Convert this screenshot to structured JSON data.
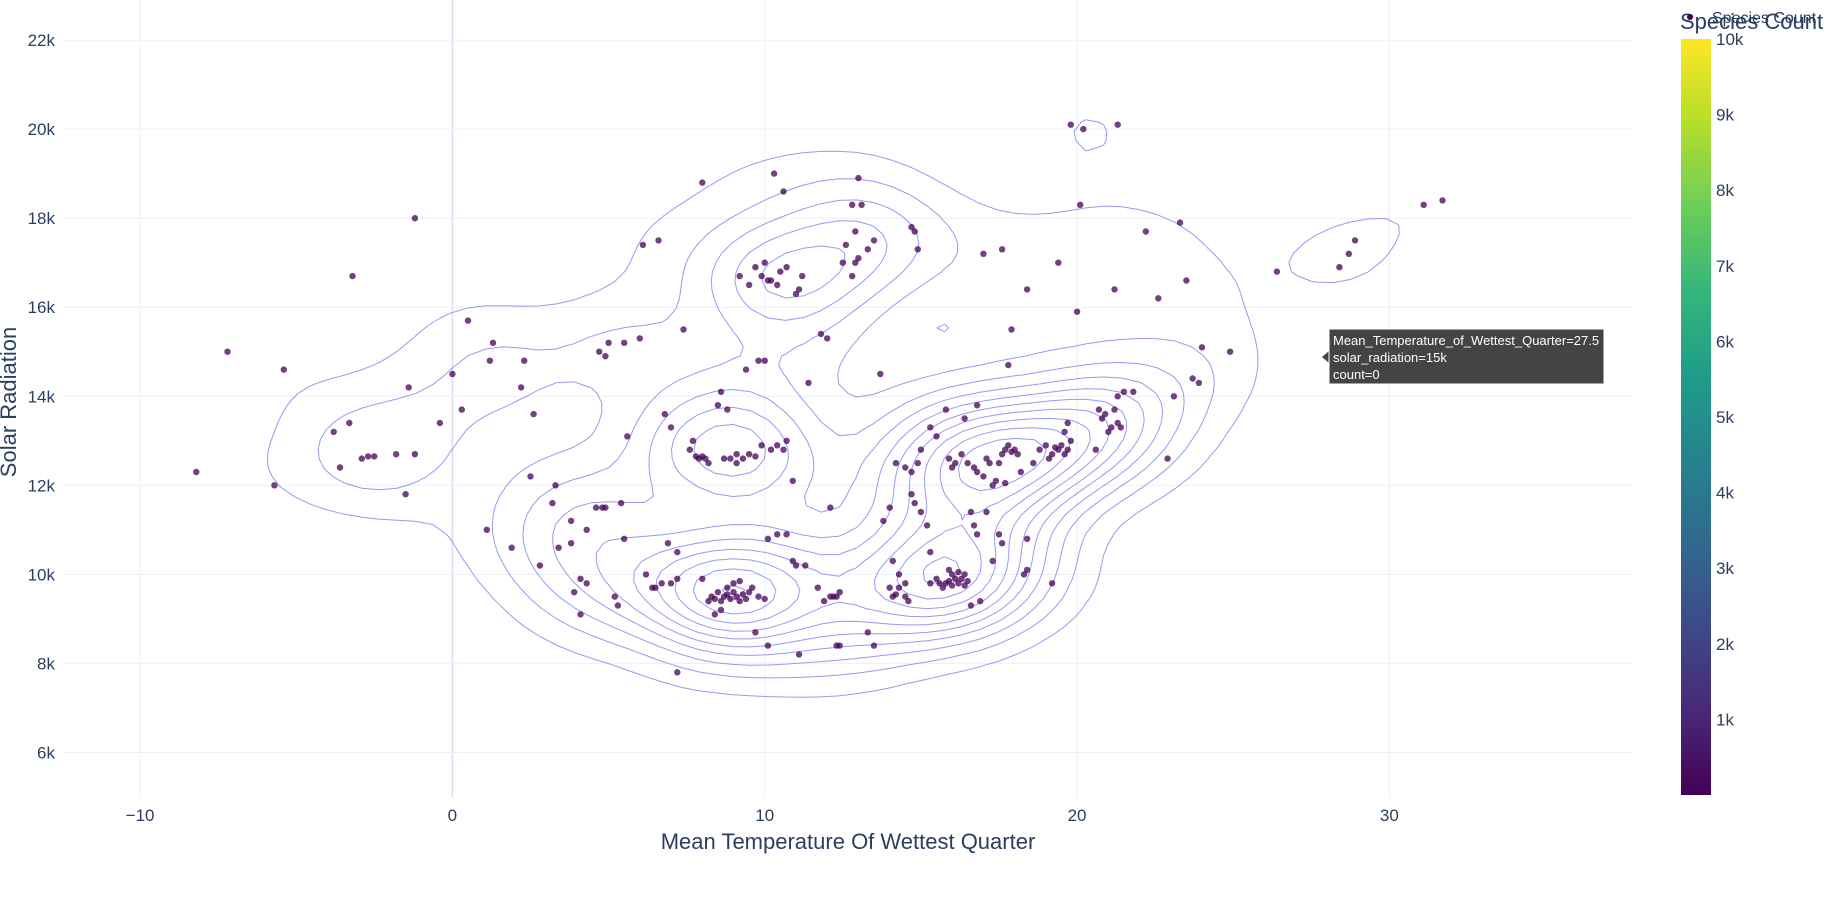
{
  "chart_data": {
    "type": "scatter",
    "xlabel": "Mean Temperature Of Wettest Quarter",
    "ylabel": "Solar Radiation",
    "xlim": [
      -12.5,
      37.8
    ],
    "ylim": [
      5000,
      22900
    ],
    "x_ticks": [
      -10,
      0,
      10,
      20,
      30
    ],
    "x_tick_labels": [
      "−10",
      "0",
      "10",
      "20",
      "30"
    ],
    "y_ticks": [
      6000,
      8000,
      10000,
      12000,
      14000,
      16000,
      18000,
      20000,
      22000
    ],
    "y_tick_labels": [
      "6k",
      "8k",
      "10k",
      "12k",
      "14k",
      "16k",
      "18k",
      "20k",
      "22k"
    ],
    "grid": true,
    "colorbar": {
      "title": "Species Count",
      "legend_label": "Species Count",
      "range": [
        0,
        10000
      ],
      "colorscale": "Viridis",
      "ticks": [
        1000,
        2000,
        3000,
        4000,
        5000,
        6000,
        7000,
        8000,
        9000,
        10000
      ],
      "tick_labels": [
        "1k",
        "2k",
        "3k",
        "4k",
        "5k",
        "6k",
        "7k",
        "8k",
        "9k",
        "10k"
      ]
    },
    "colors": {
      "point": "#440154",
      "contour": "#6d6df0",
      "grid": "#ebf0f8",
      "zeroline": "#d8ddf0"
    },
    "points": [
      [
        -8.2,
        12300
      ],
      [
        -7.2,
        15000
      ],
      [
        -5.7,
        12000
      ],
      [
        -5.4,
        14600
      ],
      [
        -3.8,
        13200
      ],
      [
        -3.6,
        12400
      ],
      [
        -3.2,
        16700
      ],
      [
        -3.3,
        13400
      ],
      [
        -2.9,
        12600
      ],
      [
        -2.7,
        12650
      ],
      [
        -2.5,
        12650
      ],
      [
        -1.4,
        14200
      ],
      [
        -1.5,
        11800
      ],
      [
        -1.2,
        12700
      ],
      [
        -1.2,
        18000
      ],
      [
        -0.4,
        13400
      ],
      [
        0.3,
        13700
      ],
      [
        0.5,
        15700
      ],
      [
        1.1,
        11000
      ],
      [
        1.2,
        14800
      ],
      [
        1.3,
        15200
      ],
      [
        1.9,
        10600
      ],
      [
        2.2,
        14200
      ],
      [
        2.3,
        14800
      ],
      [
        2.5,
        12200
      ],
      [
        2.6,
        13600
      ],
      [
        2.8,
        10200
      ],
      [
        3.2,
        11600
      ],
      [
        3.3,
        12000
      ],
      [
        3.8,
        11200
      ],
      [
        3.8,
        10700
      ],
      [
        3.9,
        9600
      ],
      [
        4.1,
        9900
      ],
      [
        4.1,
        9100
      ],
      [
        4.3,
        9800
      ],
      [
        4.3,
        11000
      ],
      [
        4.6,
        11500
      ],
      [
        4.8,
        11500
      ],
      [
        4.9,
        11500
      ],
      [
        4.7,
        15000
      ],
      [
        4.9,
        14900
      ],
      [
        5.0,
        15200
      ],
      [
        5.2,
        9500
      ],
      [
        5.3,
        9300
      ],
      [
        5.4,
        11600
      ],
      [
        5.5,
        10800
      ],
      [
        5.5,
        15200
      ],
      [
        5.6,
        13100
      ],
      [
        6.0,
        15300
      ],
      [
        6.1,
        17400
      ],
      [
        6.2,
        10000
      ],
      [
        6.4,
        9700
      ],
      [
        6.5,
        9700
      ],
      [
        6.6,
        17500
      ],
      [
        6.8,
        13600
      ],
      [
        6.9,
        10700
      ],
      [
        7.0,
        13300
      ],
      [
        7.2,
        10500
      ],
      [
        7.0,
        9800
      ],
      [
        7.2,
        9900
      ],
      [
        7.4,
        15500
      ],
      [
        7.2,
        7800
      ],
      [
        7.6,
        12800
      ],
      [
        7.7,
        13000
      ],
      [
        7.8,
        12650
      ],
      [
        7.9,
        12600
      ],
      [
        8.0,
        12650
      ],
      [
        8.1,
        12600
      ],
      [
        8.2,
        12500
      ],
      [
        8.0,
        18800
      ],
      [
        8.2,
        9400
      ],
      [
        8.3,
        9500
      ],
      [
        8.4,
        9450
      ],
      [
        8.5,
        9600
      ],
      [
        8.6,
        9400
      ],
      [
        8.7,
        9500
      ],
      [
        8.8,
        9550
      ],
      [
        8.9,
        9450
      ],
      [
        9.0,
        9600
      ],
      [
        9.1,
        9500
      ],
      [
        9.2,
        9400
      ],
      [
        9.3,
        9550
      ],
      [
        9.4,
        9450
      ],
      [
        9.5,
        9600
      ],
      [
        8.4,
        9100
      ],
      [
        8.6,
        9200
      ],
      [
        8.8,
        9700
      ],
      [
        9.0,
        9800
      ],
      [
        9.2,
        9850
      ],
      [
        9.6,
        9700
      ],
      [
        9.8,
        9500
      ],
      [
        10.0,
        9450
      ],
      [
        8.0,
        9900
      ],
      [
        8.5,
        13800
      ],
      [
        8.6,
        14100
      ],
      [
        8.8,
        13700
      ],
      [
        8.7,
        12600
      ],
      [
        8.9,
        12600
      ],
      [
        9.1,
        12700
      ],
      [
        9.3,
        12600
      ],
      [
        9.1,
        12500
      ],
      [
        9.5,
        12700
      ],
      [
        9.7,
        12650
      ],
      [
        9.2,
        16700
      ],
      [
        9.5,
        16500
      ],
      [
        9.7,
        16900
      ],
      [
        9.4,
        14600
      ],
      [
        9.8,
        14800
      ],
      [
        9.9,
        12900
      ],
      [
        10.2,
        12800
      ],
      [
        10.4,
        12900
      ],
      [
        10.6,
        12800
      ],
      [
        10.7,
        13000
      ],
      [
        10.9,
        12100
      ],
      [
        10.0,
        14800
      ],
      [
        10.0,
        17000
      ],
      [
        10.2,
        16600
      ],
      [
        10.4,
        16500
      ],
      [
        10.5,
        16800
      ],
      [
        10.3,
        19000
      ],
      [
        10.6,
        18600
      ],
      [
        10.7,
        16900
      ],
      [
        11.0,
        16300
      ],
      [
        11.1,
        16400
      ],
      [
        10.1,
        16600
      ],
      [
        9.9,
        16700
      ],
      [
        10.1,
        10800
      ],
      [
        10.4,
        10900
      ],
      [
        10.7,
        10900
      ],
      [
        10.9,
        10300
      ],
      [
        11.0,
        10200
      ],
      [
        11.3,
        10200
      ],
      [
        11.4,
        14300
      ],
      [
        11.8,
        15400
      ],
      [
        12.0,
        15300
      ],
      [
        11.7,
        9700
      ],
      [
        11.9,
        9400
      ],
      [
        12.1,
        9500
      ],
      [
        12.2,
        9500
      ],
      [
        12.3,
        9500
      ],
      [
        12.4,
        9600
      ],
      [
        12.3,
        8400
      ],
      [
        12.4,
        8400
      ],
      [
        12.1,
        11500
      ],
      [
        12.5,
        17000
      ],
      [
        12.6,
        17400
      ],
      [
        12.9,
        17700
      ],
      [
        12.8,
        16700
      ],
      [
        12.8,
        18300
      ],
      [
        12.9,
        17000
      ],
      [
        13.0,
        17100
      ],
      [
        13.0,
        18900
      ],
      [
        13.1,
        18300
      ],
      [
        13.3,
        17300
      ],
      [
        13.5,
        17500
      ],
      [
        13.7,
        14500
      ],
      [
        13.8,
        11200
      ],
      [
        14.0,
        11500
      ],
      [
        14.1,
        9500
      ],
      [
        14.0,
        9700
      ],
      [
        14.2,
        9550
      ],
      [
        14.3,
        9700
      ],
      [
        14.3,
        10000
      ],
      [
        14.5,
        9800
      ],
      [
        14.6,
        9400
      ],
      [
        14.5,
        9500
      ],
      [
        14.2,
        12500
      ],
      [
        14.5,
        12400
      ],
      [
        14.7,
        12300
      ],
      [
        14.9,
        12500
      ],
      [
        15.0,
        12800
      ],
      [
        14.7,
        11800
      ],
      [
        14.8,
        11600
      ],
      [
        15.0,
        11400
      ],
      [
        15.2,
        11100
      ],
      [
        15.3,
        10500
      ],
      [
        15.3,
        9800
      ],
      [
        15.5,
        9900
      ],
      [
        15.6,
        9800
      ],
      [
        15.7,
        9700
      ],
      [
        15.8,
        9800
      ],
      [
        15.9,
        9850
      ],
      [
        16.0,
        9750
      ],
      [
        16.1,
        9900
      ],
      [
        16.2,
        9800
      ],
      [
        16.3,
        9900
      ],
      [
        16.4,
        9750
      ],
      [
        16.5,
        9850
      ],
      [
        15.9,
        10100
      ],
      [
        16.0,
        10000
      ],
      [
        16.2,
        10050
      ],
      [
        16.4,
        10000
      ],
      [
        14.8,
        17700
      ],
      [
        14.9,
        17300
      ],
      [
        14.7,
        17800
      ],
      [
        15.3,
        13300
      ],
      [
        15.5,
        13100
      ],
      [
        15.8,
        13700
      ],
      [
        15.9,
        12600
      ],
      [
        16.0,
        12400
      ],
      [
        16.1,
        12500
      ],
      [
        16.3,
        12700
      ],
      [
        16.5,
        12500
      ],
      [
        16.7,
        12400
      ],
      [
        16.4,
        13500
      ],
      [
        16.8,
        12300
      ],
      [
        17.0,
        12200
      ],
      [
        17.1,
        12600
      ],
      [
        17.3,
        12000
      ],
      [
        17.5,
        12500
      ],
      [
        17.6,
        12700
      ],
      [
        17.7,
        12800
      ],
      [
        17.8,
        12900
      ],
      [
        17.9,
        12750
      ],
      [
        18.0,
        12800
      ],
      [
        18.1,
        12700
      ],
      [
        18.2,
        12300
      ],
      [
        17.4,
        12100
      ],
      [
        17.7,
        12050
      ],
      [
        16.6,
        11400
      ],
      [
        16.7,
        11100
      ],
      [
        16.8,
        10900
      ],
      [
        17.1,
        11400
      ],
      [
        17.5,
        10900
      ],
      [
        17.6,
        10700
      ],
      [
        17.3,
        10300
      ],
      [
        16.6,
        9300
      ],
      [
        16.9,
        9400
      ],
      [
        17.2,
        12500
      ],
      [
        16.8,
        13800
      ],
      [
        17.0,
        17200
      ],
      [
        17.6,
        17300
      ],
      [
        17.9,
        15500
      ],
      [
        17.8,
        14700
      ],
      [
        18.4,
        16400
      ],
      [
        18.4,
        10100
      ],
      [
        18.3,
        10000
      ],
      [
        18.6,
        12500
      ],
      [
        18.8,
        12800
      ],
      [
        19.0,
        12900
      ],
      [
        19.1,
        12600
      ],
      [
        19.2,
        12700
      ],
      [
        19.3,
        12850
      ],
      [
        19.4,
        12800
      ],
      [
        19.5,
        12900
      ],
      [
        19.6,
        12700
      ],
      [
        19.7,
        12800
      ],
      [
        19.8,
        13000
      ],
      [
        19.6,
        13200
      ],
      [
        19.7,
        13400
      ],
      [
        19.4,
        17000
      ],
      [
        19.8,
        20100
      ],
      [
        20.2,
        20000
      ],
      [
        20.1,
        18300
      ],
      [
        20.0,
        15900
      ],
      [
        20.6,
        12800
      ],
      [
        20.7,
        13700
      ],
      [
        20.8,
        13500
      ],
      [
        20.9,
        13600
      ],
      [
        21.0,
        13200
      ],
      [
        21.1,
        13300
      ],
      [
        21.2,
        13700
      ],
      [
        21.3,
        13400
      ],
      [
        21.4,
        13300
      ],
      [
        21.5,
        14100
      ],
      [
        21.3,
        14000
      ],
      [
        21.8,
        14100
      ],
      [
        21.3,
        20100
      ],
      [
        21.2,
        16400
      ],
      [
        22.2,
        17700
      ],
      [
        22.6,
        16200
      ],
      [
        22.9,
        12600
      ],
      [
        23.1,
        14000
      ],
      [
        23.3,
        17900
      ],
      [
        23.5,
        16600
      ],
      [
        23.7,
        14400
      ],
      [
        23.9,
        14300
      ],
      [
        24.0,
        15100
      ],
      [
        24.9,
        15000
      ],
      [
        26.4,
        16800
      ],
      [
        28.4,
        16900
      ],
      [
        28.7,
        17200
      ],
      [
        28.9,
        17500
      ],
      [
        31.1,
        18300
      ],
      [
        31.7,
        18400
      ],
      [
        -1.8,
        12700
      ],
      [
        0.0,
        14500
      ],
      [
        3.4,
        10600
      ],
      [
        6.7,
        9800
      ],
      [
        11.2,
        16700
      ],
      [
        13.3,
        8700
      ],
      [
        13.5,
        8400
      ],
      [
        11.1,
        8200
      ],
      [
        10.1,
        8400
      ],
      [
        9.7,
        8700
      ],
      [
        14.1,
        10300
      ],
      [
        18.4,
        10800
      ],
      [
        19.2,
        9800
      ]
    ],
    "hover": {
      "lines": [
        "Mean_Temperature_of_Wettest_Quarter=27.5",
        "solar_radiation=15k",
        "count=0"
      ]
    }
  }
}
